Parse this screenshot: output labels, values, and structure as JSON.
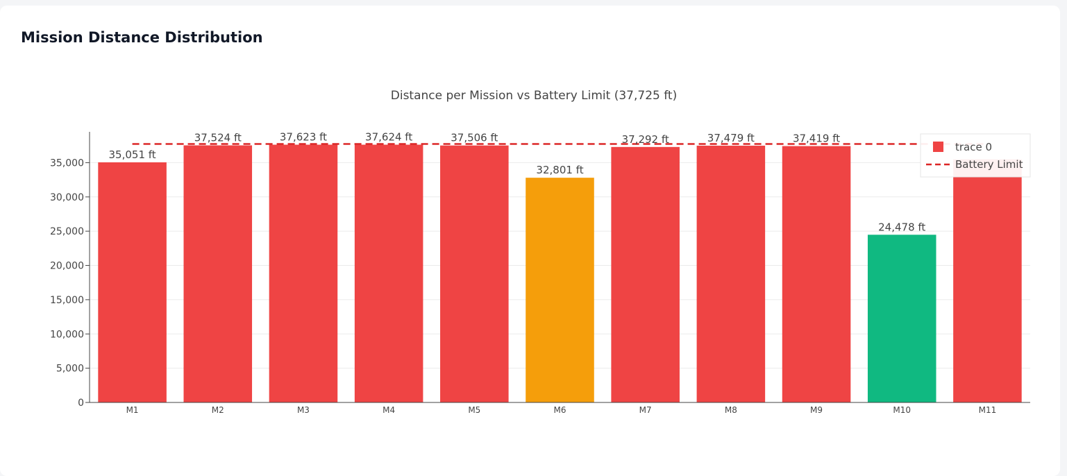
{
  "page": {
    "title": "Mission Distance Distribution"
  },
  "chart_data": {
    "type": "bar",
    "title": "Distance per Mission vs Battery Limit (37,725 ft)",
    "xlabel": "",
    "ylabel": "",
    "categories": [
      "M1",
      "M2",
      "M3",
      "M4",
      "M5",
      "M6",
      "M7",
      "M8",
      "M9",
      "M10",
      "M11"
    ],
    "values": [
      35051,
      37524,
      37623,
      37624,
      37506,
      32801,
      37292,
      37479,
      37419,
      24478,
      35500
    ],
    "labels": [
      "35,051 ft",
      "37,524 ft",
      "37,623 ft",
      "37,624 ft",
      "37,506 ft",
      "32,801 ft",
      "37,292 ft",
      "37,479 ft",
      "37,419 ft",
      "24,478 ft",
      ""
    ],
    "bar_colors": [
      "#ef4444",
      "#ef4444",
      "#ef4444",
      "#ef4444",
      "#ef4444",
      "#f59e0b",
      "#ef4444",
      "#ef4444",
      "#ef4444",
      "#10b981",
      "#ef4444"
    ],
    "ylim": [
      0,
      39500
    ],
    "yticks": [
      0,
      5000,
      10000,
      15000,
      20000,
      25000,
      30000,
      35000
    ],
    "ytick_labels": [
      "0",
      "5,000",
      "10,000",
      "15,000",
      "20,000",
      "25,000",
      "30,000",
      "35,000"
    ],
    "grid": true,
    "limit_line": {
      "name": "Battery Limit",
      "value": 37725,
      "color": "#dc2626",
      "style": "dashed"
    },
    "legend": {
      "placement": "top-right",
      "entries": [
        {
          "name": "trace 0",
          "color": "#ef4444",
          "symbol": "square"
        },
        {
          "name": "Battery Limit",
          "color": "#dc2626",
          "symbol": "dashed-line"
        }
      ]
    }
  }
}
